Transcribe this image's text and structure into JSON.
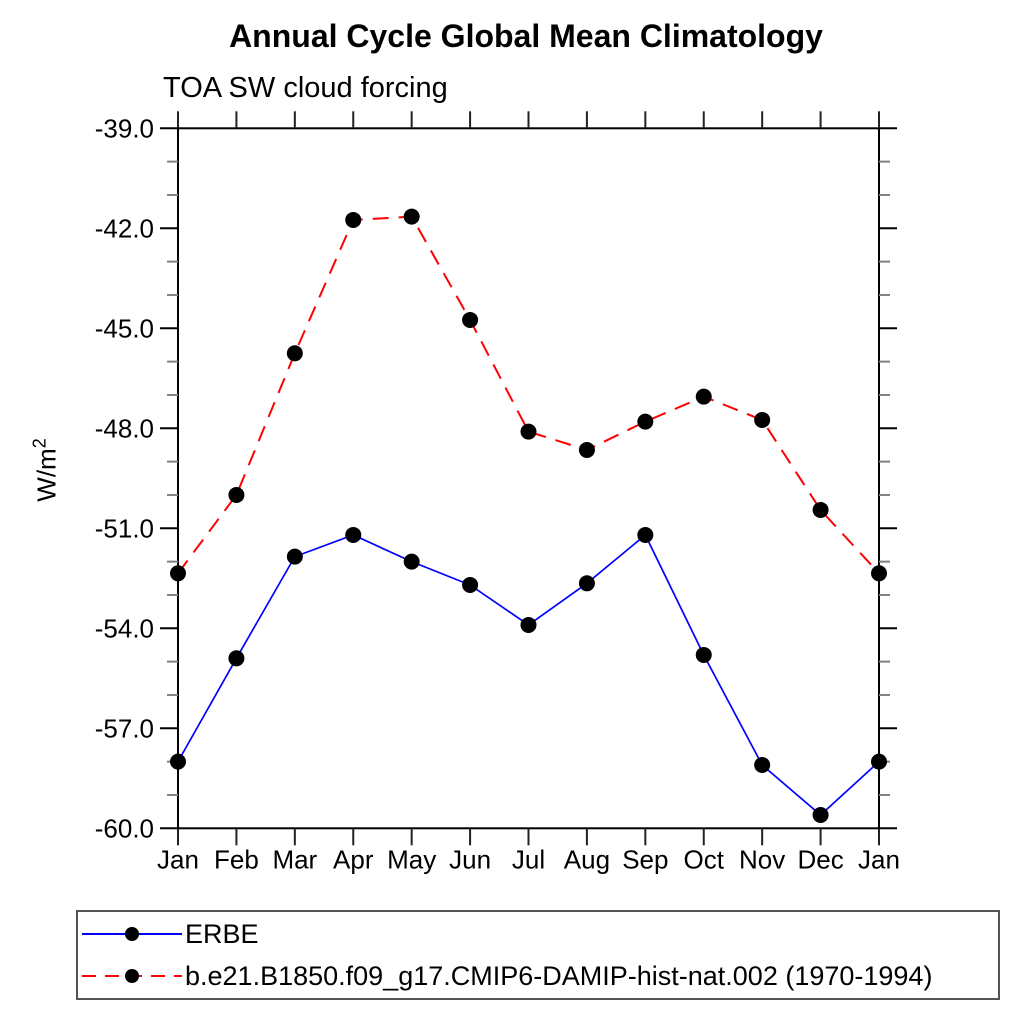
{
  "title": "Annual Cycle Global Mean Climatology",
  "subtitle": "TOA SW cloud forcing",
  "y_axis": {
    "label_base": "W/m",
    "label_sup": "2",
    "tick_labels": [
      "-39.0",
      "-42.0",
      "-45.0",
      "-48.0",
      "-51.0",
      "-54.0",
      "-57.0",
      "-60.0"
    ]
  },
  "chart_data": {
    "type": "line",
    "title": "Annual Cycle Global Mean Climatology",
    "subtitle": "TOA SW cloud forcing",
    "xlabel": "",
    "ylabel": "W/m2",
    "x_tick_labels": [
      "Jan",
      "Feb",
      "Mar",
      "Apr",
      "May",
      "Jun",
      "Jul",
      "Aug",
      "Sep",
      "Oct",
      "Nov",
      "Dec",
      "Jan"
    ],
    "ylim": [
      -60.0,
      -39.0
    ],
    "y_major_ticks": [
      -39.0,
      -42.0,
      -45.0,
      -48.0,
      -51.0,
      -54.0,
      -57.0,
      -60.0
    ],
    "y_minor_step": 1.0,
    "grid": false,
    "legend_position": "bottom",
    "marker": "filled-circle",
    "marker_color": "#000000",
    "series": [
      {
        "name": "ERBE",
        "color": "#0000ff",
        "line_style": "solid",
        "values": [
          -58.0,
          -54.9,
          -51.85,
          -51.2,
          -52.0,
          -52.7,
          -53.9,
          -52.65,
          -51.2,
          -54.8,
          -58.1,
          -59.6,
          -58.0
        ]
      },
      {
        "name": "b.e21.B1850.f09_g17.CMIP6-DAMIP-hist-nat.002 (1970-1994)",
        "color": "#ff0000",
        "line_style": "dashed",
        "values": [
          -52.35,
          -50.0,
          -45.75,
          -41.75,
          -41.65,
          -44.75,
          -48.1,
          -48.65,
          -47.8,
          -47.05,
          -47.75,
          -50.45,
          -52.35
        ]
      }
    ]
  }
}
